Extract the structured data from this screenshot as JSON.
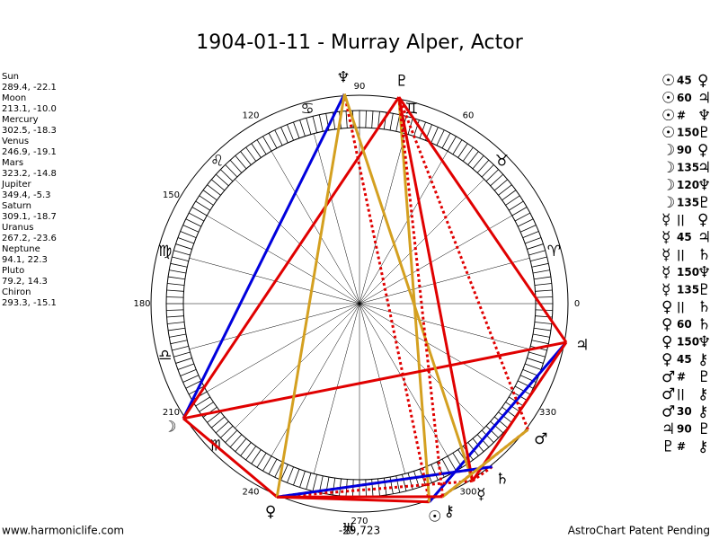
{
  "title": "1904-01-11 - Murray Alper, Actor",
  "planets": [
    {
      "name": "Sun",
      "position": "289.4, -22.1",
      "glyph": "☉"
    },
    {
      "name": "Moon",
      "position": "213.1, -10.0",
      "glyph": "☽"
    },
    {
      "name": "Mercury",
      "position": "302.5, -18.3",
      "glyph": "☿"
    },
    {
      "name": "Venus",
      "position": "246.9, -19.1",
      "glyph": "♀"
    },
    {
      "name": "Mars",
      "position": "323.2, -14.8",
      "glyph": "♂"
    },
    {
      "name": "Jupiter",
      "position": "349.4, -5.3",
      "glyph": "♃"
    },
    {
      "name": "Saturn",
      "position": "309.1, -18.7",
      "glyph": "♄"
    },
    {
      "name": "Uranus",
      "position": "267.2, -23.6",
      "glyph": "♅"
    },
    {
      "name": "Neptune",
      "position": "94.1, 22.3",
      "glyph": "♆"
    },
    {
      "name": "Pluto",
      "position": "79.2, 14.3",
      "glyph": "♇"
    },
    {
      "name": "Chiron",
      "position": "293.3, -15.1",
      "glyph": "⚷"
    }
  ],
  "signs": [
    "♈",
    "♉",
    "♊",
    "♋",
    "♌",
    "♍",
    "♎",
    "♏"
  ],
  "degree_labels": [
    "0",
    "60",
    "90",
    "120",
    "150",
    "180",
    "210",
    "240",
    "270",
    "300",
    "330"
  ],
  "aspects": [
    {
      "left": "☉",
      "label": "45",
      "right": "♀"
    },
    {
      "left": "☉",
      "label": "60",
      "right": "♃"
    },
    {
      "left": "☉",
      "label": "#",
      "right": "♆"
    },
    {
      "left": "☉",
      "label": "150",
      "right": "♇"
    },
    {
      "left": "☽",
      "label": "90",
      "right": "♀"
    },
    {
      "left": "☽",
      "label": "135",
      "right": "♃"
    },
    {
      "left": "☽",
      "label": "120",
      "right": "♆"
    },
    {
      "left": "☽",
      "label": "135",
      "right": "♇"
    },
    {
      "left": "☿",
      "label": "||",
      "right": "♀"
    },
    {
      "left": "☿",
      "label": "45",
      "right": "♃"
    },
    {
      "left": "☿",
      "label": "||",
      "right": "♄"
    },
    {
      "left": "☿",
      "label": "150",
      "right": "♆"
    },
    {
      "left": "☿",
      "label": "135",
      "right": "♇"
    },
    {
      "left": "♀",
      "label": "||",
      "right": "♄"
    },
    {
      "left": "♀",
      "label": "60",
      "right": "♄"
    },
    {
      "left": "♀",
      "label": "150",
      "right": "♆"
    },
    {
      "left": "♀",
      "label": "45",
      "right": "⚷"
    },
    {
      "left": "♂",
      "label": "#",
      "right": "♇"
    },
    {
      "left": "♂",
      "label": "||",
      "right": "⚷"
    },
    {
      "left": "♂",
      "label": "30",
      "right": "⚷"
    },
    {
      "left": "♃",
      "label": "90",
      "right": "♇"
    },
    {
      "left": "♇",
      "label": "#",
      "right": "⚷"
    }
  ],
  "footer": {
    "left": "www.harmoniclife.com",
    "center": "-29,723",
    "right": "AstroChart Patent Pending"
  }
}
